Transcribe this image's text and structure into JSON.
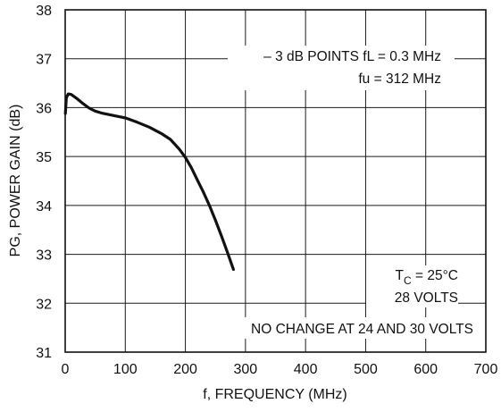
{
  "chart_data": {
    "type": "line",
    "xlabel": "f, FREQUENCY (MHz)",
    "ylabel": "PG, POWER GAIN (dB)",
    "xlim": [
      0,
      700
    ],
    "ylim": [
      31,
      38
    ],
    "xticks": [
      "0",
      "100",
      "200",
      "300",
      "400",
      "500",
      "600",
      "700"
    ],
    "yticks": [
      "31",
      "32",
      "33",
      "34",
      "35",
      "36",
      "37",
      "38"
    ],
    "grid": true,
    "series": [
      {
        "x": [
          0.3,
          2,
          5,
          10,
          20,
          30,
          40,
          50,
          60,
          80,
          100,
          120,
          140,
          160,
          175,
          190,
          200,
          210,
          220,
          230,
          240,
          250,
          260,
          270,
          280
        ],
        "y": [
          35.88,
          36.2,
          36.28,
          36.27,
          36.18,
          36.08,
          35.99,
          35.93,
          35.89,
          35.84,
          35.79,
          35.7,
          35.6,
          35.47,
          35.35,
          35.15,
          34.98,
          34.77,
          34.52,
          34.27,
          34.0,
          33.7,
          33.38,
          33.04,
          32.69
        ]
      }
    ],
    "annotations": {
      "points_3db": "– 3 dB POINTS fL = 0.3 MHz",
      "fu": "fu = 312 MHz",
      "tc_main": "T",
      "tc_sub": "C",
      "tc_rest": " = 25°C",
      "volts": "28 VOLTS",
      "no_change": "NO CHANGE AT 24 AND 30 VOLTS"
    }
  }
}
